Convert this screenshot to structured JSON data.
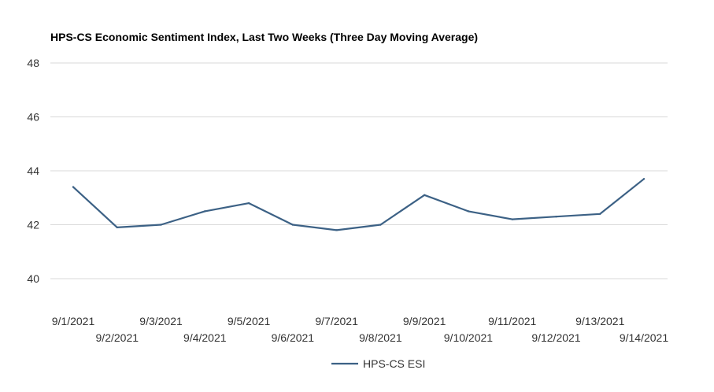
{
  "chart_data": {
    "type": "line",
    "title": "HPS-CS Economic Sentiment Index, Last Two Weeks (Three Day Moving Average)",
    "xlabel": "",
    "ylabel": "",
    "categories": [
      "9/1/2021",
      "9/2/2021",
      "9/3/2021",
      "9/4/2021",
      "9/5/2021",
      "9/6/2021",
      "9/7/2021",
      "9/8/2021",
      "9/9/2021",
      "9/10/2021",
      "9/11/2021",
      "9/12/2021",
      "9/13/2021",
      "9/14/2021"
    ],
    "series": [
      {
        "name": "HPS-CS ESI",
        "color": "#3c6185",
        "values": [
          43.4,
          41.9,
          42.0,
          42.5,
          42.8,
          42.0,
          41.8,
          42.0,
          43.1,
          42.5,
          42.2,
          42.3,
          42.4,
          43.7
        ]
      }
    ],
    "ylim": [
      40,
      48
    ],
    "yticks": [
      "40",
      "42",
      "44",
      "46",
      "48"
    ],
    "grid": true,
    "legend_position": "bottom"
  }
}
